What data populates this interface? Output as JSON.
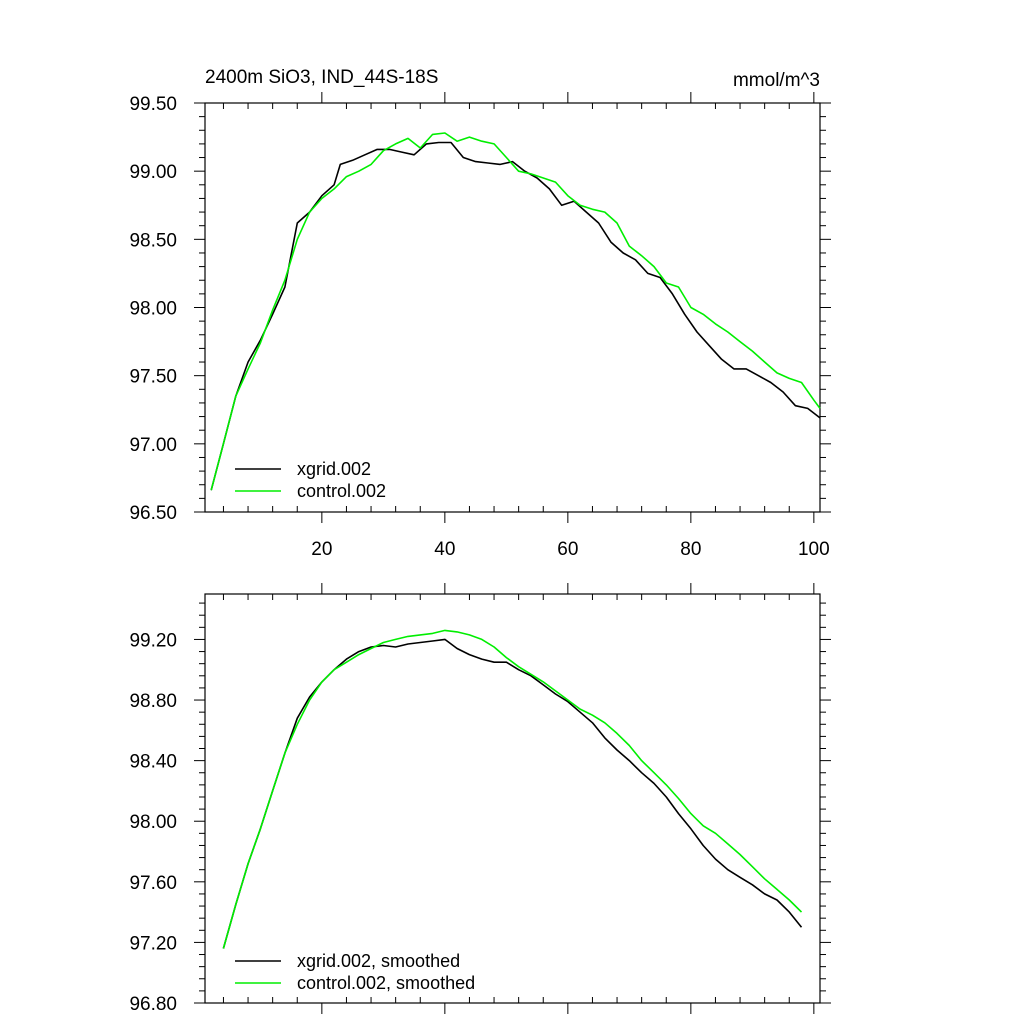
{
  "chart_data": [
    {
      "type": "line",
      "title": "2400m SiO3, IND_44S-18S",
      "units_label": "mmol/m^3",
      "xlim": [
        1,
        101
      ],
      "ylim": [
        96.5,
        99.5
      ],
      "x_ticks": [
        20,
        40,
        60,
        80,
        100
      ],
      "x_tick_labels": [
        "20",
        "40",
        "60",
        "80",
        "100"
      ],
      "y_ticks": [
        96.5,
        97.0,
        97.5,
        98.0,
        98.5,
        99.0,
        99.5
      ],
      "y_tick_labels": [
        "96.50",
        "97.00",
        "97.50",
        "98.00",
        "98.50",
        "99.00",
        "99.50"
      ],
      "legend_position": "bottom-left",
      "series": [
        {
          "name": "xgrid.002",
          "color": "#000000",
          "x": [
            2,
            4,
            6,
            8,
            10,
            12,
            14,
            16,
            18,
            20,
            22,
            23,
            25,
            27,
            29,
            31,
            33,
            35,
            37,
            39,
            41,
            43,
            45,
            47,
            49,
            51,
            53,
            55,
            57,
            59,
            61,
            63,
            65,
            67,
            69,
            71,
            73,
            75,
            77,
            79,
            81,
            83,
            85,
            87,
            89,
            91,
            93,
            95,
            97,
            99,
            101
          ],
          "y": [
            96.66,
            97.0,
            97.35,
            97.6,
            97.76,
            97.95,
            98.15,
            98.62,
            98.7,
            98.82,
            98.9,
            99.05,
            99.08,
            99.12,
            99.16,
            99.16,
            99.14,
            99.12,
            99.2,
            99.21,
            99.21,
            99.1,
            99.07,
            99.06,
            99.05,
            99.07,
            99.0,
            98.95,
            98.87,
            98.75,
            98.78,
            98.7,
            98.62,
            98.48,
            98.4,
            98.35,
            98.25,
            98.22,
            98.1,
            97.95,
            97.82,
            97.72,
            97.62,
            97.55,
            97.55,
            97.5,
            97.45,
            97.38,
            97.28,
            97.26,
            97.19
          ]
        },
        {
          "name": "control.002",
          "color": "#00ee00",
          "x": [
            2,
            4,
            6,
            8,
            10,
            12,
            14,
            16,
            18,
            20,
            22,
            24,
            26,
            28,
            30,
            32,
            34,
            36,
            38,
            40,
            42,
            44,
            46,
            48,
            50,
            52,
            54,
            56,
            58,
            60,
            62,
            64,
            66,
            68,
            70,
            72,
            74,
            76,
            78,
            80,
            82,
            84,
            86,
            88,
            90,
            92,
            94,
            96,
            98,
            100,
            101
          ],
          "y": [
            96.66,
            97.0,
            97.35,
            97.55,
            97.74,
            97.98,
            98.2,
            98.5,
            98.7,
            98.8,
            98.87,
            98.96,
            99.0,
            99.05,
            99.15,
            99.2,
            99.24,
            99.17,
            99.27,
            99.28,
            99.22,
            99.25,
            99.22,
            99.2,
            99.1,
            99.0,
            98.98,
            98.95,
            98.92,
            98.82,
            98.75,
            98.72,
            98.7,
            98.62,
            98.45,
            98.38,
            98.3,
            98.18,
            98.15,
            98.0,
            97.95,
            97.88,
            97.82,
            97.75,
            97.68,
            97.6,
            97.52,
            97.48,
            97.45,
            97.32,
            97.26
          ]
        }
      ]
    },
    {
      "type": "line",
      "xlim": [
        1,
        101
      ],
      "ylim": [
        96.8,
        99.5
      ],
      "x_ticks": [
        20,
        40,
        60,
        80,
        100
      ],
      "y_ticks": [
        96.8,
        97.2,
        97.6,
        98.0,
        98.4,
        98.8,
        99.2
      ],
      "y_tick_labels": [
        "96.80",
        "97.20",
        "97.60",
        "98.00",
        "98.40",
        "98.80",
        "99.20"
      ],
      "legend_position": "bottom-left",
      "series": [
        {
          "name": "xgrid.002, smoothed",
          "color": "#000000",
          "x": [
            4,
            6,
            8,
            10,
            12,
            14,
            16,
            18,
            20,
            22,
            24,
            26,
            28,
            30,
            32,
            34,
            36,
            38,
            40,
            42,
            44,
            46,
            48,
            50,
            52,
            54,
            56,
            58,
            60,
            62,
            64,
            66,
            68,
            70,
            72,
            74,
            76,
            78,
            80,
            82,
            84,
            86,
            88,
            90,
            92,
            94,
            96,
            98
          ],
          "y": [
            97.16,
            97.45,
            97.72,
            97.95,
            98.2,
            98.45,
            98.68,
            98.82,
            98.92,
            99.0,
            99.07,
            99.12,
            99.15,
            99.16,
            99.15,
            99.17,
            99.18,
            99.19,
            99.2,
            99.14,
            99.1,
            99.07,
            99.05,
            99.05,
            99.0,
            98.96,
            98.9,
            98.84,
            98.79,
            98.72,
            98.65,
            98.55,
            98.47,
            98.4,
            98.32,
            98.25,
            98.16,
            98.05,
            97.95,
            97.84,
            97.75,
            97.68,
            97.63,
            97.58,
            97.52,
            97.48,
            97.4,
            97.3
          ]
        },
        {
          "name": "control.002, smoothed",
          "color": "#00ee00",
          "x": [
            4,
            6,
            8,
            10,
            12,
            14,
            16,
            18,
            20,
            22,
            24,
            26,
            28,
            30,
            32,
            34,
            36,
            38,
            40,
            42,
            44,
            46,
            48,
            50,
            52,
            54,
            56,
            58,
            60,
            62,
            64,
            66,
            68,
            70,
            72,
            74,
            76,
            78,
            80,
            82,
            84,
            86,
            88,
            90,
            92,
            94,
            96,
            98
          ],
          "y": [
            97.16,
            97.45,
            97.72,
            97.95,
            98.2,
            98.45,
            98.64,
            98.8,
            98.92,
            99.0,
            99.05,
            99.1,
            99.14,
            99.18,
            99.2,
            99.22,
            99.23,
            99.24,
            99.26,
            99.25,
            99.23,
            99.2,
            99.15,
            99.08,
            99.02,
            98.97,
            98.92,
            98.86,
            98.8,
            98.74,
            98.7,
            98.65,
            98.58,
            98.5,
            98.4,
            98.32,
            98.24,
            98.15,
            98.05,
            97.97,
            97.92,
            97.85,
            97.78,
            97.7,
            97.62,
            97.55,
            97.48,
            97.4
          ]
        }
      ]
    }
  ]
}
